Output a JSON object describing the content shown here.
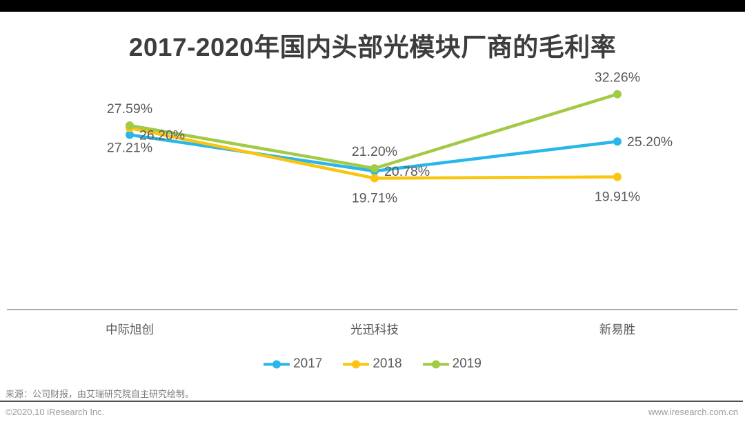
{
  "title": "2017-2020年国内头部光模块厂商的毛利率",
  "chart_data": {
    "type": "line",
    "title": "2017-2020年国内头部光模块厂商的毛利率",
    "categories": [
      "中际旭创",
      "光迅科技",
      "新易胜"
    ],
    "unit": "%",
    "series": [
      {
        "name": "2017",
        "color": "#29B6E8",
        "values": [
          26.2,
          20.78,
          25.2
        ],
        "labels": [
          "26.20%",
          "20.78%",
          "25.20%"
        ],
        "label_pos": [
          "right",
          "right",
          "right"
        ]
      },
      {
        "name": "2018",
        "color": "#FBC40F",
        "values": [
          27.21,
          19.71,
          19.91
        ],
        "labels": [
          "27.21%",
          "19.71%",
          "19.91%"
        ],
        "label_pos": [
          "below",
          "below",
          "below"
        ]
      },
      {
        "name": "2019",
        "color": "#A2CA45",
        "values": [
          27.59,
          21.2,
          32.26
        ],
        "labels": [
          "27.59%",
          "21.20%",
          "32.26%"
        ],
        "label_pos": [
          "above",
          "above",
          "above"
        ]
      }
    ],
    "ylim": [
      0,
      35
    ],
    "grid": false,
    "legend_position": "bottom",
    "legend": [
      "2017",
      "2018",
      "2019"
    ],
    "xlabel": "",
    "ylabel": "",
    "label_color": "#595959",
    "axis_line_color": "#a9a9a9",
    "axis_label_color": "#595959"
  },
  "footer": {
    "source": "来源：公司财报，由艾瑞研究院自主研究绘制。",
    "copyright": "©2020.10 iResearch Inc.",
    "website": "www.iresearch.com.cn"
  }
}
